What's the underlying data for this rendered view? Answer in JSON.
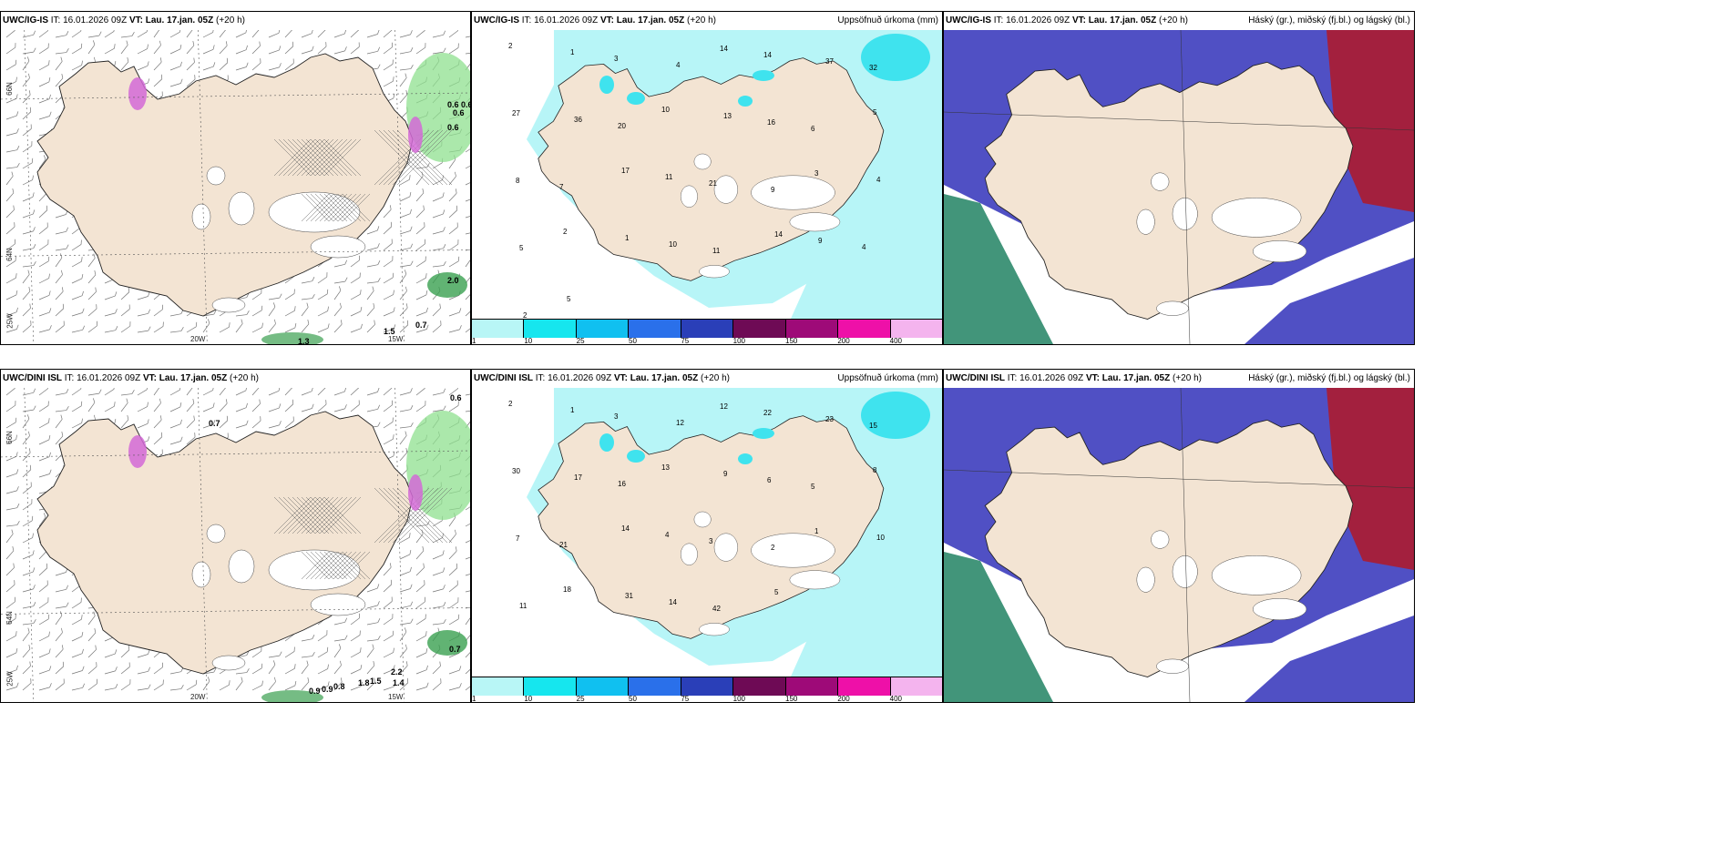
{
  "rows": [
    {
      "model_label": "UWC/IG-IS",
      "panels": {
        "wind": {
          "it_label": "IT: 16.01.2026 09Z",
          "vt_prefix": "VT:",
          "vt_value": "Lau. 17.jan. 05Z",
          "lead": "(+20 h)"
        },
        "precip": {
          "it_label": "IT: 16.01.2026 09Z",
          "vt_prefix": "VT:",
          "vt_value": "Lau. 17.jan. 05Z",
          "lead": "(+20 h)",
          "right_title": "Uppsöfnuð úrkoma (mm)"
        },
        "cloud": {
          "it_label": "IT: 16.01.2026 09Z",
          "vt_prefix": "VT:",
          "vt_value": "Lau. 17.jan. 05Z",
          "lead": "(+20 h)",
          "right_title": "Háský (gr.), miðský (fj.bl.) og lágský (bl.)"
        }
      },
      "wind_values": [
        "0.6",
        "0.6",
        "0.6",
        "0.6",
        "0.7",
        "2.0",
        "1.3",
        "1.5"
      ],
      "precip_values": [
        "2",
        "1",
        "3",
        "4",
        "14",
        "14",
        "37",
        "32",
        "27",
        "36",
        "20",
        "10",
        "13",
        "16",
        "6",
        "5",
        "8",
        "7",
        "17",
        "11",
        "21",
        "9",
        "3",
        "4",
        "5",
        "2",
        "1",
        "10",
        "11",
        "14",
        "9",
        "4",
        "2",
        "5"
      ]
    },
    {
      "model_label": "UWC/DINI ISL",
      "panels": {
        "wind": {
          "it_label": "IT: 16.01.2026 09Z",
          "vt_prefix": "VT:",
          "vt_value": "Lau. 17.jan. 05Z",
          "lead": "(+20 h)"
        },
        "precip": {
          "it_label": "IT: 16.01.2026 09Z",
          "vt_prefix": "VT:",
          "vt_value": "Lau. 17.jan. 05Z",
          "lead": "(+20 h)",
          "right_title": "Uppsöfnuð úrkoma (mm)"
        },
        "cloud": {
          "it_label": "IT: 16.01.2026 09Z",
          "vt_prefix": "VT:",
          "vt_value": "Lau. 17.jan. 05Z",
          "lead": "(+20 h)",
          "right_title": "Háský (gr.), miðský (fj.bl.) og lágský (bl.)"
        }
      },
      "wind_values": [
        "0.6",
        "0.7",
        "0.7",
        "0.9",
        "0.9",
        "0.8",
        "1.5",
        "2.2",
        "1.4",
        "1.8"
      ],
      "precip_values": [
        "2",
        "1",
        "3",
        "12",
        "12",
        "22",
        "23",
        "15",
        "30",
        "17",
        "16",
        "13",
        "9",
        "6",
        "5",
        "8",
        "7",
        "21",
        "14",
        "4",
        "3",
        "2",
        "1",
        "10",
        "11",
        "18",
        "31",
        "14",
        "42",
        "5"
      ]
    }
  ],
  "axis_labels": {
    "lat_66": "66N",
    "lat_64": "64N",
    "lon_25": "25W",
    "lon_20": "20W",
    "lon_15": "15W"
  },
  "colorbar": {
    "labels": [
      "1",
      "10",
      "25",
      "50",
      "75",
      "100",
      "150",
      "200",
      "400"
    ],
    "colors": [
      "#b8f6f6",
      "#16e6ee",
      "#10c0f0",
      "#2a70ea",
      "#2a3fb8",
      "#6e0a55",
      "#9e0a78",
      "#ee10a8",
      "#f4b4ee"
    ]
  },
  "colors": {
    "land": "#f3e4d3",
    "precip_light": "#b7f5f7",
    "precip_mid": "#3fe3ee",
    "cloud_mid": "#5050c4",
    "cloud_high": "#a3203e",
    "cloud_low": "#2e8a6c",
    "wind_green": "#8fe08f"
  }
}
